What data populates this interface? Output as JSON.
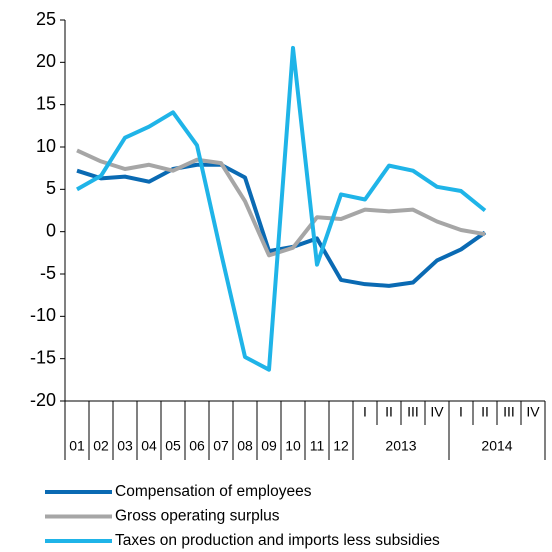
{
  "chart_data": {
    "type": "line",
    "categories": [
      "01",
      "02",
      "03",
      "04",
      "05",
      "06",
      "07",
      "08",
      "09",
      "10",
      "11",
      "12",
      "I",
      "II",
      "III",
      "IV",
      "I",
      "II",
      "III",
      "IV"
    ],
    "groups": [
      "2013",
      "2014"
    ],
    "series": [
      {
        "name": "Compensation of employees",
        "color": "#0a6ab3",
        "values": [
          7.2,
          6.3,
          6.5,
          5.9,
          7.4,
          7.9,
          7.9,
          6.4,
          -2.3,
          -1.8,
          -0.8,
          -5.7,
          -6.2,
          -6.4,
          -6.0,
          -3.4,
          -2.1,
          -0.1,
          null,
          null
        ]
      },
      {
        "name": "Gross operating surplus",
        "color": "#a6a6a6",
        "values": [
          9.6,
          8.3,
          7.4,
          7.9,
          7.2,
          8.5,
          8.1,
          3.6,
          -2.8,
          -1.9,
          1.7,
          1.5,
          2.6,
          2.4,
          2.6,
          1.2,
          0.2,
          -0.3,
          null,
          null
        ]
      },
      {
        "name": "Taxes on production and imports less subsidies",
        "color": "#1fb4e8",
        "values": [
          5.0,
          6.6,
          11.1,
          12.4,
          14.1,
          10.2,
          -2.5,
          -14.8,
          -16.3,
          21.7,
          -3.9,
          4.4,
          3.8,
          7.8,
          7.2,
          5.3,
          4.8,
          2.5,
          null,
          null
        ]
      }
    ],
    "ylim": [
      -20,
      25
    ],
    "yticks": [
      -20,
      -15,
      -10,
      -5,
      0,
      5,
      10,
      15,
      20,
      25
    ]
  }
}
